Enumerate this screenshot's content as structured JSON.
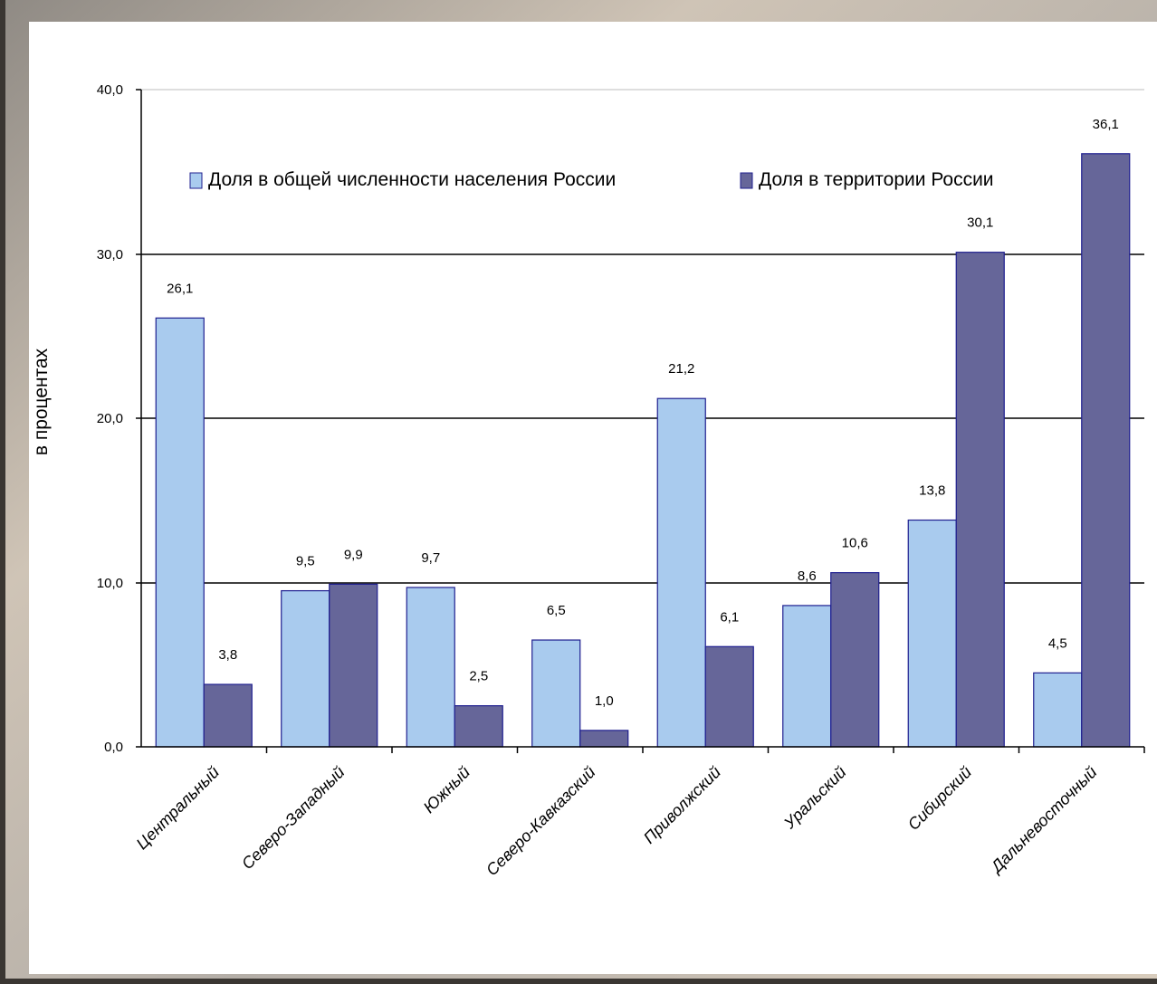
{
  "colors": {
    "population": "#a9cbee",
    "territory": "#666699",
    "bar_outline": "#1f1f8f",
    "grid": "#000000"
  },
  "chart_data": {
    "type": "bar",
    "ylabel": "в процентах",
    "xlabel": "",
    "ylim": [
      0,
      40
    ],
    "yticks": [
      "0,0",
      "10,0",
      "20,0",
      "30,0",
      "40,0"
    ],
    "grid": true,
    "legend_position": "top",
    "categories": [
      "Центральный",
      "Северо-Западный",
      "Южный",
      "Северо-Кавказский",
      "Приволжский",
      "Уральский",
      "Сибирский",
      "Дальневосточный"
    ],
    "series": [
      {
        "name": "Доля в общей численности населения России",
        "values": [
          26.1,
          9.5,
          9.7,
          6.5,
          21.2,
          8.6,
          13.8,
          4.5
        ],
        "labels": [
          "26,1",
          "9,5",
          "9,7",
          "6,5",
          "21,2",
          "8,6",
          "13,8",
          "4,5"
        ]
      },
      {
        "name": "Доля в территории России",
        "values": [
          3.8,
          9.9,
          2.5,
          1.0,
          6.1,
          10.6,
          30.1,
          36.1
        ],
        "labels": [
          "3,8",
          "9,9",
          "2,5",
          "1,0",
          "6,1",
          "10,6",
          "30,1",
          "36,1"
        ]
      }
    ]
  }
}
